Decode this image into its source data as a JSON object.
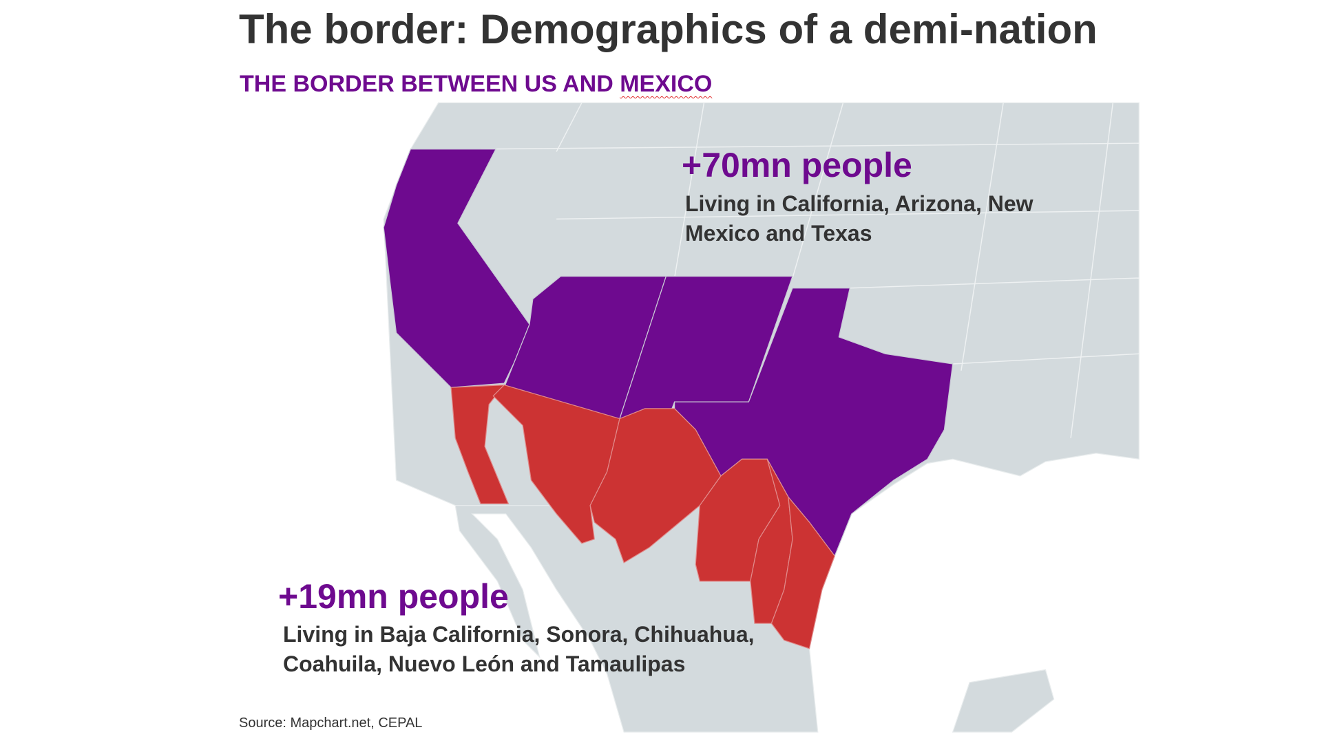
{
  "title": "The border: Demographics of a demi-nation",
  "subtitle_prefix": "THE BORDER BETWEEN US AND ",
  "subtitle_flagged": "MEXICO",
  "us": {
    "headline": "+70mn people",
    "description": "Living in California, Arizona, New Mexico and Texas"
  },
  "mexico": {
    "headline": "+19mn people",
    "description": "Living in Baja California, Sonora, Chihuahua, Coahuila, Nuevo León and Tamaulipas"
  },
  "source": "Source: Mapchart.net, CEPAL",
  "colors": {
    "us_states": "#6e0a8f",
    "mexico_states": "#cc3333",
    "land": "#d3dadd",
    "title": "#333333"
  }
}
